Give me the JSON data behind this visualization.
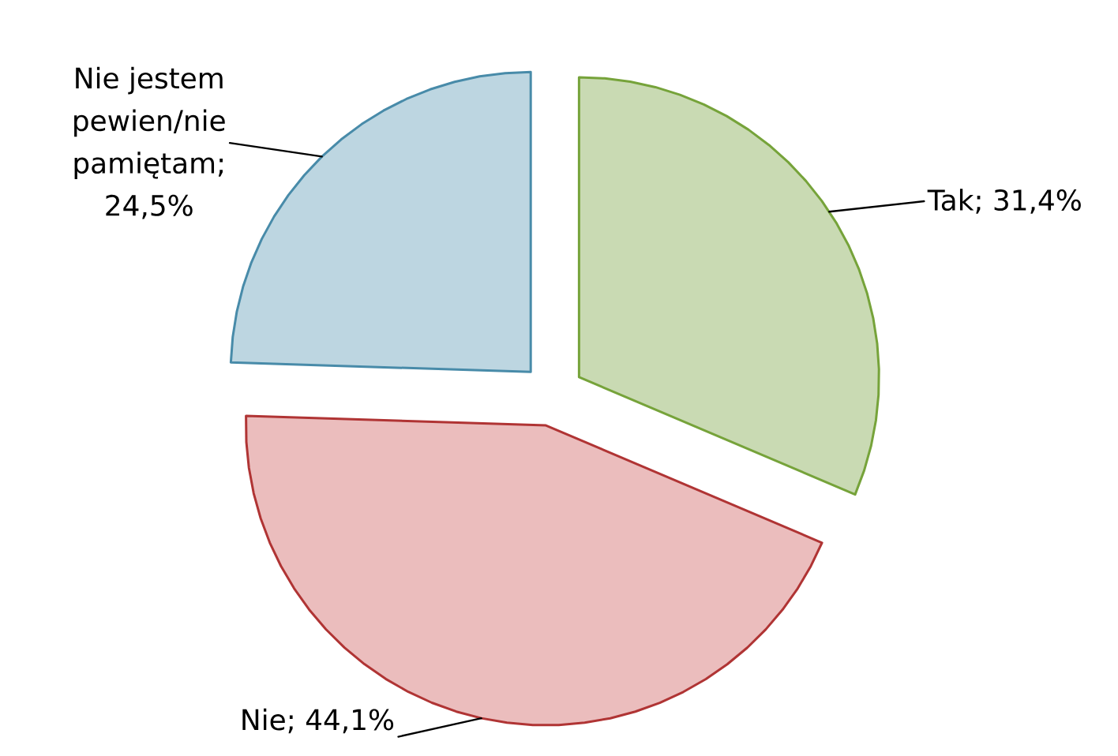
{
  "chart_data": {
    "type": "pie",
    "categories": [
      "Tak; 31,4%",
      "Nie; 44,1%",
      "Nie jestem pewien/nie pamiętam; 24,5%"
    ],
    "values": [
      31.4,
      44.1,
      24.5
    ],
    "colors": [
      "#c9dab3",
      "#ebbdbd",
      "#bdd6e1"
    ]
  }
}
